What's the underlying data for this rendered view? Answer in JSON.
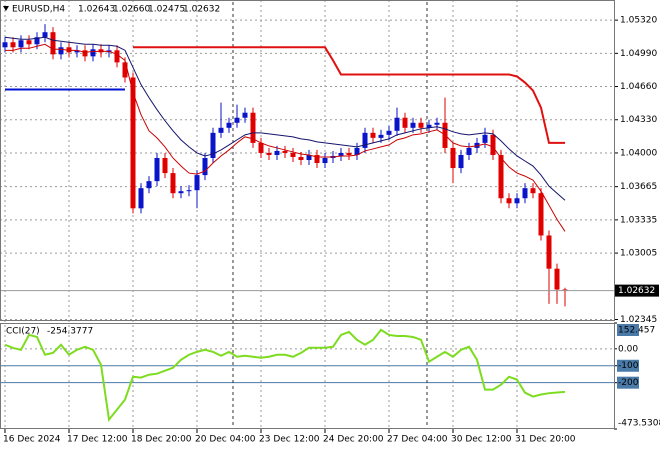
{
  "chart_data": {
    "type": "candlestick",
    "symbol": "EURUSD,H4",
    "ohlc_labels": [
      "1.02643",
      "1.02660",
      "1.02475",
      "1.02632"
    ],
    "up_color": "#0a14c8",
    "down_color": "#e00000",
    "grid": true,
    "categories": [
      "16 Dec 2024",
      null,
      null,
      null,
      null,
      null,
      null,
      null,
      "17 Dec 12:00",
      null,
      null,
      null,
      null,
      null,
      null,
      null,
      "18 Dec 20:00",
      null,
      null,
      null,
      null,
      null,
      null,
      null,
      "20 Dec 04:00",
      null,
      null,
      null,
      null,
      null,
      null,
      null,
      "23 Dec 12:00",
      null,
      null,
      null,
      null,
      null,
      null,
      null,
      "24 Dec 20:00",
      null,
      null,
      null,
      null,
      null,
      null,
      null,
      "27 Dec 04:00",
      null,
      null,
      null,
      null,
      null,
      null,
      null,
      "30 Dec 12:00",
      null,
      null,
      null,
      null,
      null,
      null,
      null,
      "31 Dec 20:00",
      null,
      null,
      null,
      null,
      null,
      null
    ],
    "open": [
      1.0505,
      1.051,
      1.0505,
      1.0512,
      1.0508,
      1.0515,
      1.052,
      1.0498,
      1.0505,
      1.05,
      1.0502,
      1.0496,
      1.0503,
      1.05,
      1.0502,
      1.049,
      1.0475,
      1.0345,
      1.0365,
      1.0372,
      1.0395,
      1.038,
      1.036,
      1.0362,
      1.0363,
      1.0378,
      1.0395,
      1.042,
      1.0425,
      1.043,
      1.0435,
      1.044,
      1.041,
      1.04,
      1.0398,
      1.0402,
      1.04,
      1.0396,
      1.0393,
      1.0398,
      1.039,
      1.0395,
      1.0397,
      1.04,
      1.0398,
      1.0405,
      1.042,
      1.0415,
      1.0418,
      1.0422,
      1.0435,
      1.0425,
      1.043,
      1.0425,
      1.0428,
      1.043,
      1.0405,
      1.0385,
      1.0398,
      1.0405,
      1.041,
      1.0418,
      1.0398,
      1.0355,
      1.035,
      1.0355,
      1.0365,
      1.036,
      1.0318,
      1.0285,
      1.02643
    ],
    "high": [
      1.0515,
      1.0515,
      1.0517,
      1.0517,
      1.052,
      1.0528,
      1.0525,
      1.051,
      1.051,
      1.0507,
      1.0507,
      1.0508,
      1.0508,
      1.0507,
      1.0507,
      1.0495,
      1.048,
      1.037,
      1.0377,
      1.04,
      1.04,
      1.0385,
      1.0367,
      1.0368,
      1.0383,
      1.04,
      1.0425,
      1.045,
      1.0435,
      1.0448,
      1.0445,
      1.0445,
      1.0415,
      1.0405,
      1.0407,
      1.0407,
      1.0405,
      1.0401,
      1.0403,
      1.0403,
      1.04,
      1.0402,
      1.0405,
      1.0405,
      1.041,
      1.0425,
      1.0425,
      1.0423,
      1.0427,
      1.0445,
      1.044,
      1.0435,
      1.0435,
      1.0433,
      1.0435,
      1.0455,
      1.041,
      1.0403,
      1.041,
      1.0415,
      1.0425,
      1.0423,
      1.0403,
      1.036,
      1.036,
      1.037,
      1.037,
      1.0365,
      1.0323,
      1.029,
      1.0266
    ],
    "low": [
      1.05,
      1.05,
      1.05,
      1.0503,
      1.0503,
      1.051,
      1.0493,
      1.0493,
      1.0495,
      1.0495,
      1.0491,
      1.0491,
      1.0495,
      1.0495,
      1.0485,
      1.047,
      1.034,
      1.034,
      1.036,
      1.0367,
      1.0375,
      1.0355,
      1.0355,
      1.0357,
      1.0345,
      1.0373,
      1.039,
      1.0415,
      1.042,
      1.0425,
      1.043,
      1.0405,
      1.0395,
      1.0393,
      1.0393,
      1.0395,
      1.0391,
      1.0388,
      1.0388,
      1.0385,
      1.0385,
      1.039,
      1.0392,
      1.0393,
      1.0393,
      1.04,
      1.041,
      1.041,
      1.0413,
      1.0417,
      1.042,
      1.042,
      1.042,
      1.042,
      1.0423,
      1.04,
      1.037,
      1.038,
      1.0393,
      1.04,
      1.0405,
      1.0393,
      1.035,
      1.0345,
      1.0345,
      1.035,
      1.0355,
      1.0313,
      1.025,
      1.025,
      1.02475
    ],
    "close": [
      1.051,
      1.0505,
      1.0512,
      1.0508,
      1.0515,
      1.052,
      1.0498,
      1.0505,
      1.05,
      1.0502,
      1.0496,
      1.0503,
      1.05,
      1.0502,
      1.049,
      1.0475,
      1.0345,
      1.0365,
      1.0372,
      1.0395,
      1.038,
      1.036,
      1.0362,
      1.0363,
      1.0378,
      1.0395,
      1.042,
      1.0425,
      1.043,
      1.0435,
      1.044,
      1.041,
      1.04,
      1.0398,
      1.0402,
      1.04,
      1.0396,
      1.0393,
      1.0398,
      1.039,
      1.0395,
      1.0397,
      1.04,
      1.0398,
      1.0405,
      1.042,
      1.0415,
      1.0418,
      1.0422,
      1.0435,
      1.0425,
      1.043,
      1.0425,
      1.0428,
      1.043,
      1.0405,
      1.0385,
      1.0398,
      1.0405,
      1.041,
      1.0418,
      1.0398,
      1.0355,
      1.035,
      1.0355,
      1.0365,
      1.036,
      1.0318,
      1.0285,
      1.02643,
      1.02632
    ],
    "overlays": [
      {
        "color": "#14146e",
        "width": 1,
        "values": [
          1.0515,
          1.0514,
          1.0513,
          1.0513,
          1.0514,
          1.0515,
          1.0512,
          1.0511,
          1.051,
          1.0509,
          1.0508,
          1.0508,
          1.0507,
          1.0507,
          1.0506,
          1.0502,
          1.0485,
          1.0468,
          1.0455,
          1.0443,
          1.0432,
          1.0422,
          1.0413,
          1.0406,
          1.04,
          1.0397,
          1.0399,
          1.0403,
          1.0408,
          1.0413,
          1.0418,
          1.042,
          1.042,
          1.0419,
          1.0418,
          1.0417,
          1.0416,
          1.0414,
          1.0413,
          1.0411,
          1.041,
          1.0409,
          1.0408,
          1.0407,
          1.0406,
          1.0408,
          1.041,
          1.0412,
          1.0414,
          1.0418,
          1.042,
          1.0422,
          1.0424,
          1.0425,
          1.0426,
          1.0424,
          1.0421,
          1.0419,
          1.0418,
          1.0419,
          1.042,
          1.0419,
          1.0412,
          1.0404,
          1.0397,
          1.0392,
          1.0387,
          1.0378,
          1.0367,
          1.036,
          1.0353
        ]
      },
      {
        "color": "#cc0000",
        "width": 1,
        "values": [
          1.0502,
          1.0502,
          1.0504,
          1.0504,
          1.0506,
          1.0508,
          1.0503,
          1.0503,
          1.0502,
          1.0502,
          1.05,
          1.0501,
          1.0501,
          1.0501,
          1.0498,
          1.0492,
          1.046,
          1.0438,
          1.0422,
          1.0415,
          1.0406,
          1.0395,
          1.0387,
          1.038,
          1.0379,
          1.0382,
          1.039,
          1.0397,
          1.0403,
          1.041,
          1.0416,
          1.0414,
          1.041,
          1.0407,
          1.0405,
          1.0403,
          1.0401,
          1.0399,
          1.0398,
          1.0396,
          1.0396,
          1.0396,
          1.0397,
          1.0397,
          1.0398,
          1.0402,
          1.0404,
          1.0406,
          1.0408,
          1.0413,
          1.0415,
          1.0418,
          1.0419,
          1.0421,
          1.0423,
          1.0418,
          1.041,
          1.0407,
          1.0406,
          1.0407,
          1.0409,
          1.0406,
          1.0395,
          1.0386,
          1.038,
          1.0377,
          1.0373,
          1.0362,
          1.0348,
          1.0334,
          1.0322
        ]
      },
      {
        "color": "#e01010",
        "width": 2,
        "values": [
          null,
          null,
          null,
          null,
          null,
          null,
          null,
          null,
          null,
          null,
          null,
          null,
          null,
          null,
          null,
          null,
          1.0505,
          1.0505,
          1.0505,
          1.0505,
          1.0505,
          1.0505,
          1.0505,
          1.0505,
          1.0505,
          1.0505,
          1.0505,
          1.0505,
          1.0505,
          1.0505,
          1.0505,
          1.0505,
          1.0505,
          1.0505,
          1.0505,
          1.0505,
          1.0505,
          1.0505,
          1.0505,
          1.0505,
          1.0505,
          1.0492,
          1.0478,
          1.0478,
          1.0478,
          1.0478,
          1.0478,
          1.0478,
          1.0478,
          1.0478,
          1.0478,
          1.0478,
          1.0478,
          1.0478,
          1.0478,
          1.0478,
          1.0478,
          1.0478,
          1.0478,
          1.0478,
          1.0478,
          1.0478,
          1.0478,
          1.0478,
          1.0476,
          1.047,
          1.0462,
          1.0445,
          1.041,
          1.041,
          1.041
        ]
      },
      {
        "color": "#0010d0",
        "width": 2,
        "values": [
          1.0463,
          1.0463,
          1.0463,
          1.0463,
          1.0463,
          1.0463,
          1.0463,
          1.0463,
          1.0463,
          1.0463,
          1.0463,
          1.0463,
          1.0463,
          1.0463,
          1.0463,
          1.0463,
          null,
          null,
          null,
          null,
          null,
          null,
          null,
          null,
          null,
          null,
          null,
          null,
          null,
          null,
          null,
          null,
          null,
          null,
          null,
          null,
          null,
          null,
          null,
          null,
          null,
          null,
          null,
          null,
          null,
          null,
          null,
          null,
          null,
          null,
          null,
          null,
          null,
          null,
          null,
          null,
          null,
          null,
          null,
          null,
          null,
          null,
          null,
          null,
          null,
          null,
          null,
          null,
          null,
          null,
          null
        ]
      }
    ],
    "ylim": [
      1.0234,
      1.0552
    ],
    "yticks": [
      {
        "value": 1.0532,
        "label": "1.05320"
      },
      {
        "value": 1.0499,
        "label": "1.04990"
      },
      {
        "value": 1.0466,
        "label": "1.04660"
      },
      {
        "value": 1.0433,
        "label": "1.04330"
      },
      {
        "value": 1.04,
        "label": "1.04000"
      },
      1.03665,
      1.03335,
      1.03005,
      1.02345
    ],
    "indicator": {
      "label": "CCI(27)",
      "color": "#7ddc1f",
      "values": [
        24,
        5,
        -6,
        82,
        70,
        -35,
        -24,
        24,
        -35,
        -6,
        12,
        -6,
        -94,
        -418,
        -359,
        -300,
        -165,
        -170,
        -153,
        -147,
        -129,
        -112,
        -65,
        -35,
        -18,
        -6,
        -18,
        -41,
        -18,
        -47,
        -41,
        -47,
        -53,
        -47,
        -35,
        -35,
        -47,
        -24,
        6,
        6,
        6,
        12,
        82,
        100,
        53,
        24,
        53,
        112,
        82,
        76,
        76,
        70,
        53,
        -76,
        -47,
        -18,
        -47,
        -6,
        12,
        -65,
        -241,
        -241,
        -212,
        -165,
        -182,
        -259,
        -282,
        -270,
        -262,
        -258,
        -254.3777
      ],
      "y2lim": [
        -473.5308,
        152.457
      ],
      "y2ticks": [
        152.457,
        {
          "value": 0,
          "label": "0.00"
        },
        -100,
        -200,
        -473.5308
      ]
    }
  }
}
